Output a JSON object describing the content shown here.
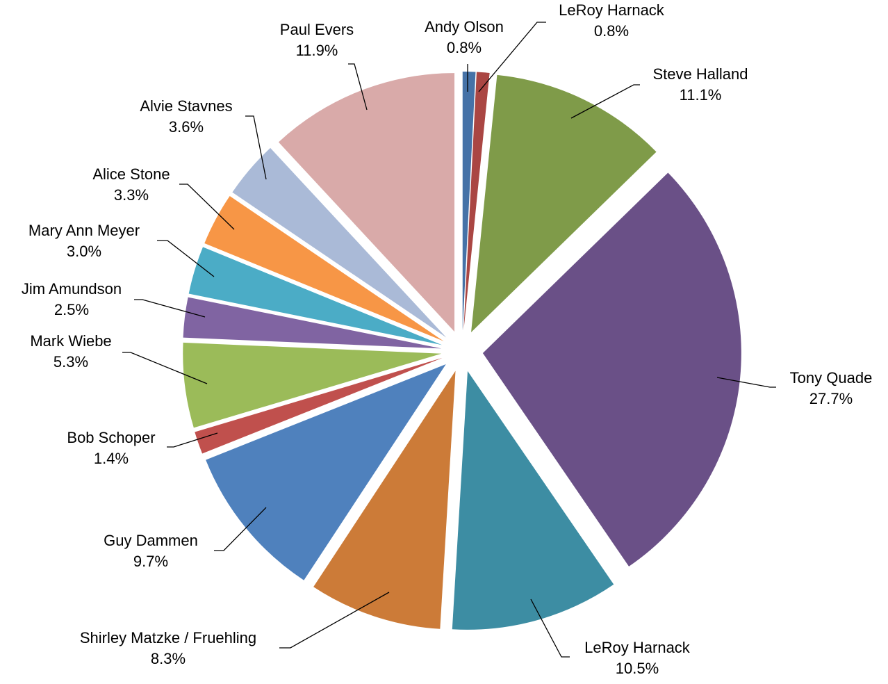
{
  "chart_data": {
    "type": "pie",
    "exploded": true,
    "title": "",
    "legend": "none",
    "label_content": "name and percent",
    "slices": [
      {
        "name": "Andy Olson",
        "value": 0.8,
        "label_pct": "0.8%",
        "color": "#4572A7"
      },
      {
        "name": "LeRoy Harnack",
        "value": 0.8,
        "label_pct": "0.8%",
        "color": "#AA4643"
      },
      {
        "name": "Steve Halland",
        "value": 11.1,
        "label_pct": "11.1%",
        "color": "#7F9B49"
      },
      {
        "name": "Tony Quade",
        "value": 27.7,
        "label_pct": "27.7%",
        "color": "#6A5087"
      },
      {
        "name": "LeRoy Harnack",
        "value": 10.5,
        "label_pct": "10.5%",
        "color": "#3D8DA3"
      },
      {
        "name": "Shirley Matzke / Fruehling",
        "value": 8.3,
        "label_pct": "8.3%",
        "color": "#CC7B38"
      },
      {
        "name": "Guy Dammen",
        "value": 9.7,
        "label_pct": "9.7%",
        "color": "#4F81BD"
      },
      {
        "name": "Bob Schoper",
        "value": 1.4,
        "label_pct": "1.4%",
        "color": "#C0504D"
      },
      {
        "name": "Mark Wiebe",
        "value": 5.3,
        "label_pct": "5.3%",
        "color": "#9BBB59"
      },
      {
        "name": "Jim Amundson",
        "value": 2.5,
        "label_pct": "2.5%",
        "color": "#8064A2"
      },
      {
        "name": "Mary Ann Meyer",
        "value": 3.0,
        "label_pct": "3.0%",
        "color": "#4BACC6"
      },
      {
        "name": "Alice Stone",
        "value": 3.3,
        "label_pct": "3.3%",
        "color": "#F79646"
      },
      {
        "name": "Alvie Stavnes",
        "value": 3.6,
        "label_pct": "3.6%",
        "color": "#AABAD7"
      },
      {
        "name": "Paul Evers",
        "value": 11.9,
        "label_pct": "11.9%",
        "color": "#D9AAA9"
      }
    ]
  }
}
